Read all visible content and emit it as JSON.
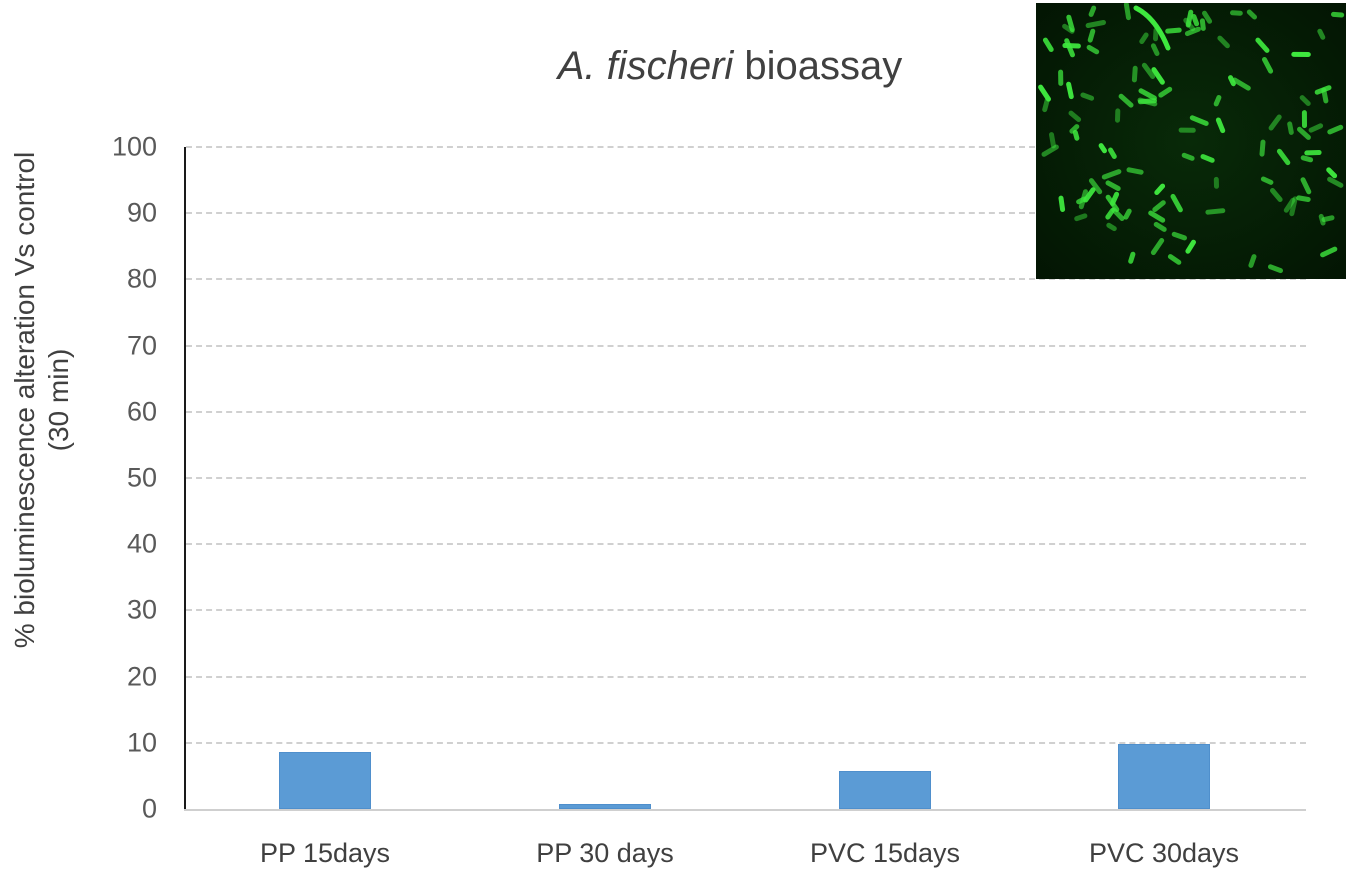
{
  "chart_data": {
    "type": "bar",
    "title": "A. fischeri bioassay",
    "title_parts": {
      "italic": "A. fischeri",
      "normal": " bioassay"
    },
    "xlabel": "",
    "ylabel": "% bioluminescence alteration Vs control (30 min)",
    "ylabel_lines": [
      "% bioluminescence alteration Vs control",
      "(30 min)"
    ],
    "categories": [
      "PP 15days",
      "PP 30 days",
      "PVC 15days",
      "PVC 30days"
    ],
    "values": [
      8.6,
      0.7,
      5.7,
      9.8
    ],
    "ylim": [
      0,
      100
    ],
    "yticks": [
      "0",
      "10",
      "20",
      "30",
      "40",
      "50",
      "60",
      "70",
      "80",
      "90",
      "100"
    ],
    "grid": true,
    "legend": null,
    "bar_color": "#5b9bd5",
    "inset_image": "fluorescence micrograph of green rod-shaped bacteria"
  }
}
